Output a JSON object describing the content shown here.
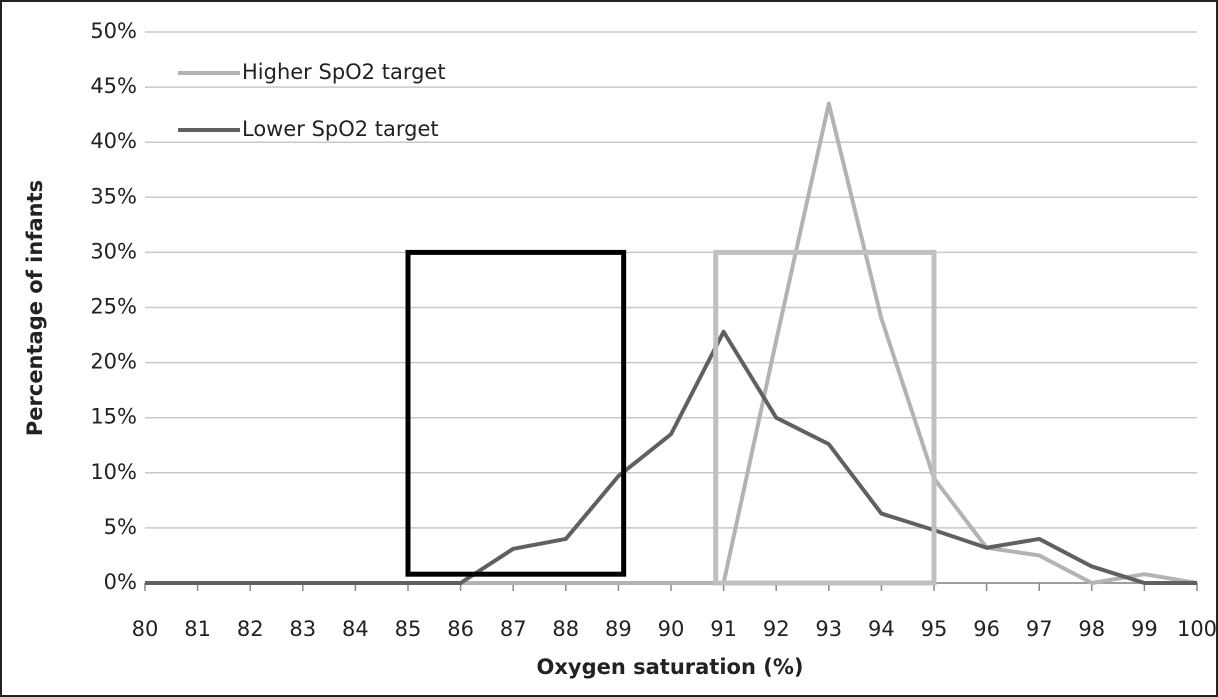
{
  "chart_data": {
    "type": "line",
    "xlabel": "Oxygen saturation (%)",
    "ylabel": "Percentage of infants",
    "x": [
      80,
      81,
      82,
      83,
      84,
      85,
      86,
      87,
      88,
      89,
      90,
      91,
      92,
      93,
      94,
      95,
      96,
      97,
      98,
      99,
      100
    ],
    "series": [
      {
        "name": "Higher SpO2 target",
        "color": "#b3b3b3",
        "values": [
          0,
          0,
          0,
          0,
          0,
          0,
          0,
          0,
          0,
          0,
          0,
          0,
          22,
          43.5,
          24,
          9.5,
          3.2,
          2.5,
          0,
          0.8,
          0
        ]
      },
      {
        "name": "Lower SpO2 target",
        "color": "#606060",
        "values": [
          0,
          0,
          0,
          0,
          0,
          0,
          0,
          3.1,
          4,
          9.7,
          13.5,
          22.8,
          15,
          12.6,
          6.3,
          4.8,
          3.2,
          4,
          1.5,
          0,
          0
        ]
      }
    ],
    "target_boxes": [
      {
        "x": [
          85,
          89.1
        ],
        "y": [
          0.8,
          30
        ],
        "color": "#000000"
      },
      {
        "x": [
          90.85,
          95
        ],
        "y": [
          0,
          30
        ],
        "color": "#c0c0c0"
      }
    ],
    "xlim": [
      80,
      100
    ],
    "xticks": [
      80,
      81,
      82,
      83,
      84,
      85,
      86,
      87,
      88,
      89,
      90,
      91,
      92,
      93,
      94,
      95,
      96,
      97,
      98,
      99,
      100
    ],
    "ylim": [
      0,
      50
    ],
    "yticks": [
      {
        "value": 0,
        "label": "0%"
      },
      {
        "value": 5,
        "label": "5%"
      },
      {
        "value": 10,
        "label": "10%"
      },
      {
        "value": 15,
        "label": "15%"
      },
      {
        "value": 20,
        "label": "20%"
      },
      {
        "value": 25,
        "label": "25%"
      },
      {
        "value": 30,
        "label": "30%"
      },
      {
        "value": 35,
        "label": "35%"
      },
      {
        "value": 40,
        "label": "40%"
      },
      {
        "value": 45,
        "label": "45%"
      },
      {
        "value": 50,
        "label": "50%"
      }
    ],
    "grid": true,
    "legend": "upper left"
  }
}
